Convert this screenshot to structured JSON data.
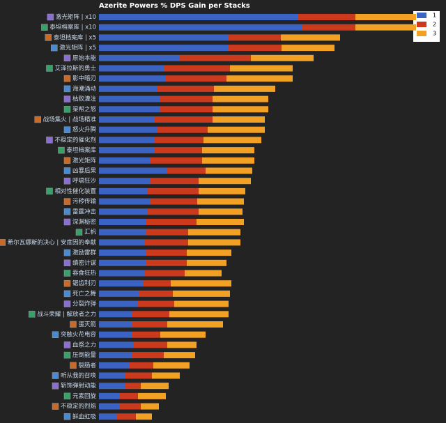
{
  "chart_data": {
    "type": "bar",
    "orientation": "horizontal",
    "stacked": true,
    "title": "Azerite Powers % DPS Gain per Stacks",
    "categories": [
      "激光矩阵 | x10",
      "泰坦档案库 | x10",
      "泰坦档案库 | x5",
      "激光矩阵 | x5",
      "原始本能",
      "艾泽拉斯的勇士",
      "影中暗刃",
      "海潮涌动",
      "枯败灌注",
      "渠帮之怒",
      "战场集火 | 战场精准",
      "怒火升腾",
      "不稳定的催化剂",
      "泰坦档案库",
      "激光矩阵",
      "凶暴后果",
      "呼啸狂沙",
      "相对性催化装置",
      "污秽传输",
      "雷霆冲击",
      "深渊秘密",
      "汇帆",
      "希尔瓦娜斯的决心 | 安度因的奉献",
      "激励雷群",
      "缜密计谋",
      "吞食狂热",
      "锯齿利刃",
      "死亡之舞",
      "分裂炸弹",
      "战斗荣耀 | 解放者之力",
      "蛋灭箭",
      "突触火花电容",
      "血祭之力",
      "压倒能量",
      "裂肠者",
      "听从我的召唤",
      "斩饰弹射动能",
      "元素回旋",
      "不稳定的烈焰",
      "鲜血虹吸"
    ],
    "series": [
      {
        "name": "1",
        "color": "#3b63c4",
        "values": [
          286,
          291,
          185,
          185,
          116,
          93,
          96,
          83,
          88,
          88,
          80,
          83,
          80,
          80,
          73,
          98,
          73,
          70,
          73,
          70,
          68,
          68,
          65,
          68,
          68,
          65,
          63,
          58,
          56,
          48,
          48,
          48,
          50,
          48,
          43,
          38,
          38,
          30,
          30,
          26
        ]
      },
      {
        "name": "2",
        "color": "#cc3a1e",
        "values": [
          82,
          77,
          76,
          77,
          102,
          95,
          87,
          82,
          75,
          75,
          83,
          73,
          70,
          68,
          75,
          55,
          70,
          73,
          68,
          73,
          72,
          60,
          63,
          58,
          58,
          58,
          40,
          48,
          52,
          53,
          50,
          40,
          48,
          45,
          35,
          38,
          22,
          26,
          30,
          27
        ]
      },
      {
        "name": "3",
        "color": "#f2a124",
        "values": [
          87,
          87,
          85,
          76,
          90,
          90,
          95,
          88,
          80,
          80,
          75,
          82,
          83,
          75,
          75,
          67,
          75,
          67,
          67,
          63,
          68,
          75,
          75,
          64,
          57,
          53,
          87,
          82,
          78,
          85,
          80,
          65,
          42,
          45,
          52,
          40,
          40,
          40,
          26,
          23
        ]
      }
    ],
    "xlim": [
      0,
      500
    ],
    "legend": "top-right"
  }
}
